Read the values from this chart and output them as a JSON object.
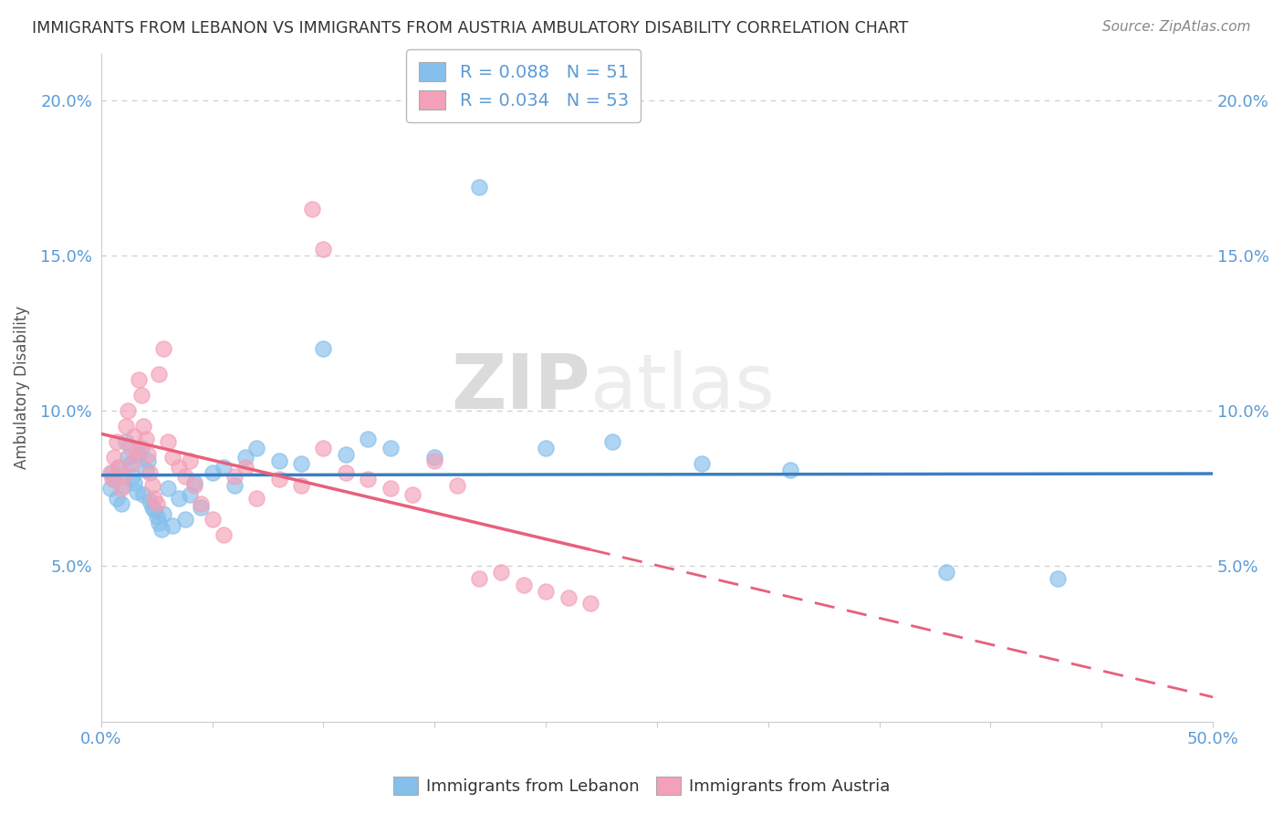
{
  "title": "IMMIGRANTS FROM LEBANON VS IMMIGRANTS FROM AUSTRIA AMBULATORY DISABILITY CORRELATION CHART",
  "source": "Source: ZipAtlas.com",
  "ylabel": "Ambulatory Disability",
  "yticks": [
    "5.0%",
    "10.0%",
    "15.0%",
    "20.0%"
  ],
  "ytick_values": [
    0.05,
    0.1,
    0.15,
    0.2
  ],
  "xmin": 0.0,
  "xmax": 0.5,
  "ymin": 0.0,
  "ymax": 0.215,
  "legend_label_blue": "Immigrants from Lebanon",
  "legend_label_pink": "Immigrants from Austria",
  "R_blue": 0.088,
  "N_blue": 51,
  "R_pink": 0.034,
  "N_pink": 53,
  "blue_color": "#85BFEC",
  "pink_color": "#F4A0B8",
  "blue_line_color": "#3A7FC1",
  "pink_line_color": "#E8607A",
  "watermark_left": "ZIP",
  "watermark_right": "atlas",
  "blue_x": [
    0.004,
    0.005,
    0.006,
    0.007,
    0.008,
    0.009,
    0.01,
    0.011,
    0.012,
    0.013,
    0.014,
    0.015,
    0.016,
    0.017,
    0.018,
    0.019,
    0.02,
    0.021,
    0.022,
    0.023,
    0.024,
    0.025,
    0.026,
    0.027,
    0.028,
    0.03,
    0.032,
    0.035,
    0.038,
    0.04,
    0.042,
    0.045,
    0.05,
    0.055,
    0.06,
    0.065,
    0.07,
    0.08,
    0.09,
    0.1,
    0.11,
    0.12,
    0.13,
    0.15,
    0.17,
    0.2,
    0.23,
    0.27,
    0.31,
    0.38,
    0.43
  ],
  "blue_y": [
    0.075,
    0.08,
    0.078,
    0.072,
    0.082,
    0.07,
    0.076,
    0.09,
    0.085,
    0.083,
    0.079,
    0.077,
    0.074,
    0.086,
    0.088,
    0.073,
    0.081,
    0.084,
    0.071,
    0.069,
    0.068,
    0.066,
    0.064,
    0.062,
    0.067,
    0.075,
    0.063,
    0.072,
    0.065,
    0.073,
    0.077,
    0.069,
    0.08,
    0.082,
    0.076,
    0.085,
    0.088,
    0.084,
    0.083,
    0.12,
    0.086,
    0.091,
    0.088,
    0.085,
    0.172,
    0.088,
    0.09,
    0.083,
    0.081,
    0.048,
    0.046
  ],
  "pink_x": [
    0.004,
    0.005,
    0.006,
    0.007,
    0.008,
    0.009,
    0.01,
    0.011,
    0.012,
    0.013,
    0.014,
    0.015,
    0.016,
    0.017,
    0.018,
    0.019,
    0.02,
    0.021,
    0.022,
    0.023,
    0.024,
    0.025,
    0.026,
    0.028,
    0.03,
    0.032,
    0.035,
    0.038,
    0.04,
    0.042,
    0.045,
    0.05,
    0.055,
    0.06,
    0.065,
    0.07,
    0.08,
    0.09,
    0.1,
    0.11,
    0.12,
    0.13,
    0.14,
    0.15,
    0.16,
    0.17,
    0.18,
    0.19,
    0.2,
    0.21,
    0.22,
    0.1,
    0.095
  ],
  "pink_y": [
    0.08,
    0.078,
    0.085,
    0.09,
    0.082,
    0.075,
    0.079,
    0.095,
    0.1,
    0.088,
    0.083,
    0.092,
    0.087,
    0.11,
    0.105,
    0.095,
    0.091,
    0.086,
    0.08,
    0.076,
    0.072,
    0.07,
    0.112,
    0.12,
    0.09,
    0.085,
    0.082,
    0.079,
    0.084,
    0.076,
    0.07,
    0.065,
    0.06,
    0.079,
    0.082,
    0.072,
    0.078,
    0.076,
    0.088,
    0.08,
    0.078,
    0.075,
    0.073,
    0.084,
    0.076,
    0.046,
    0.048,
    0.044,
    0.042,
    0.04,
    0.038,
    0.152,
    0.165
  ]
}
